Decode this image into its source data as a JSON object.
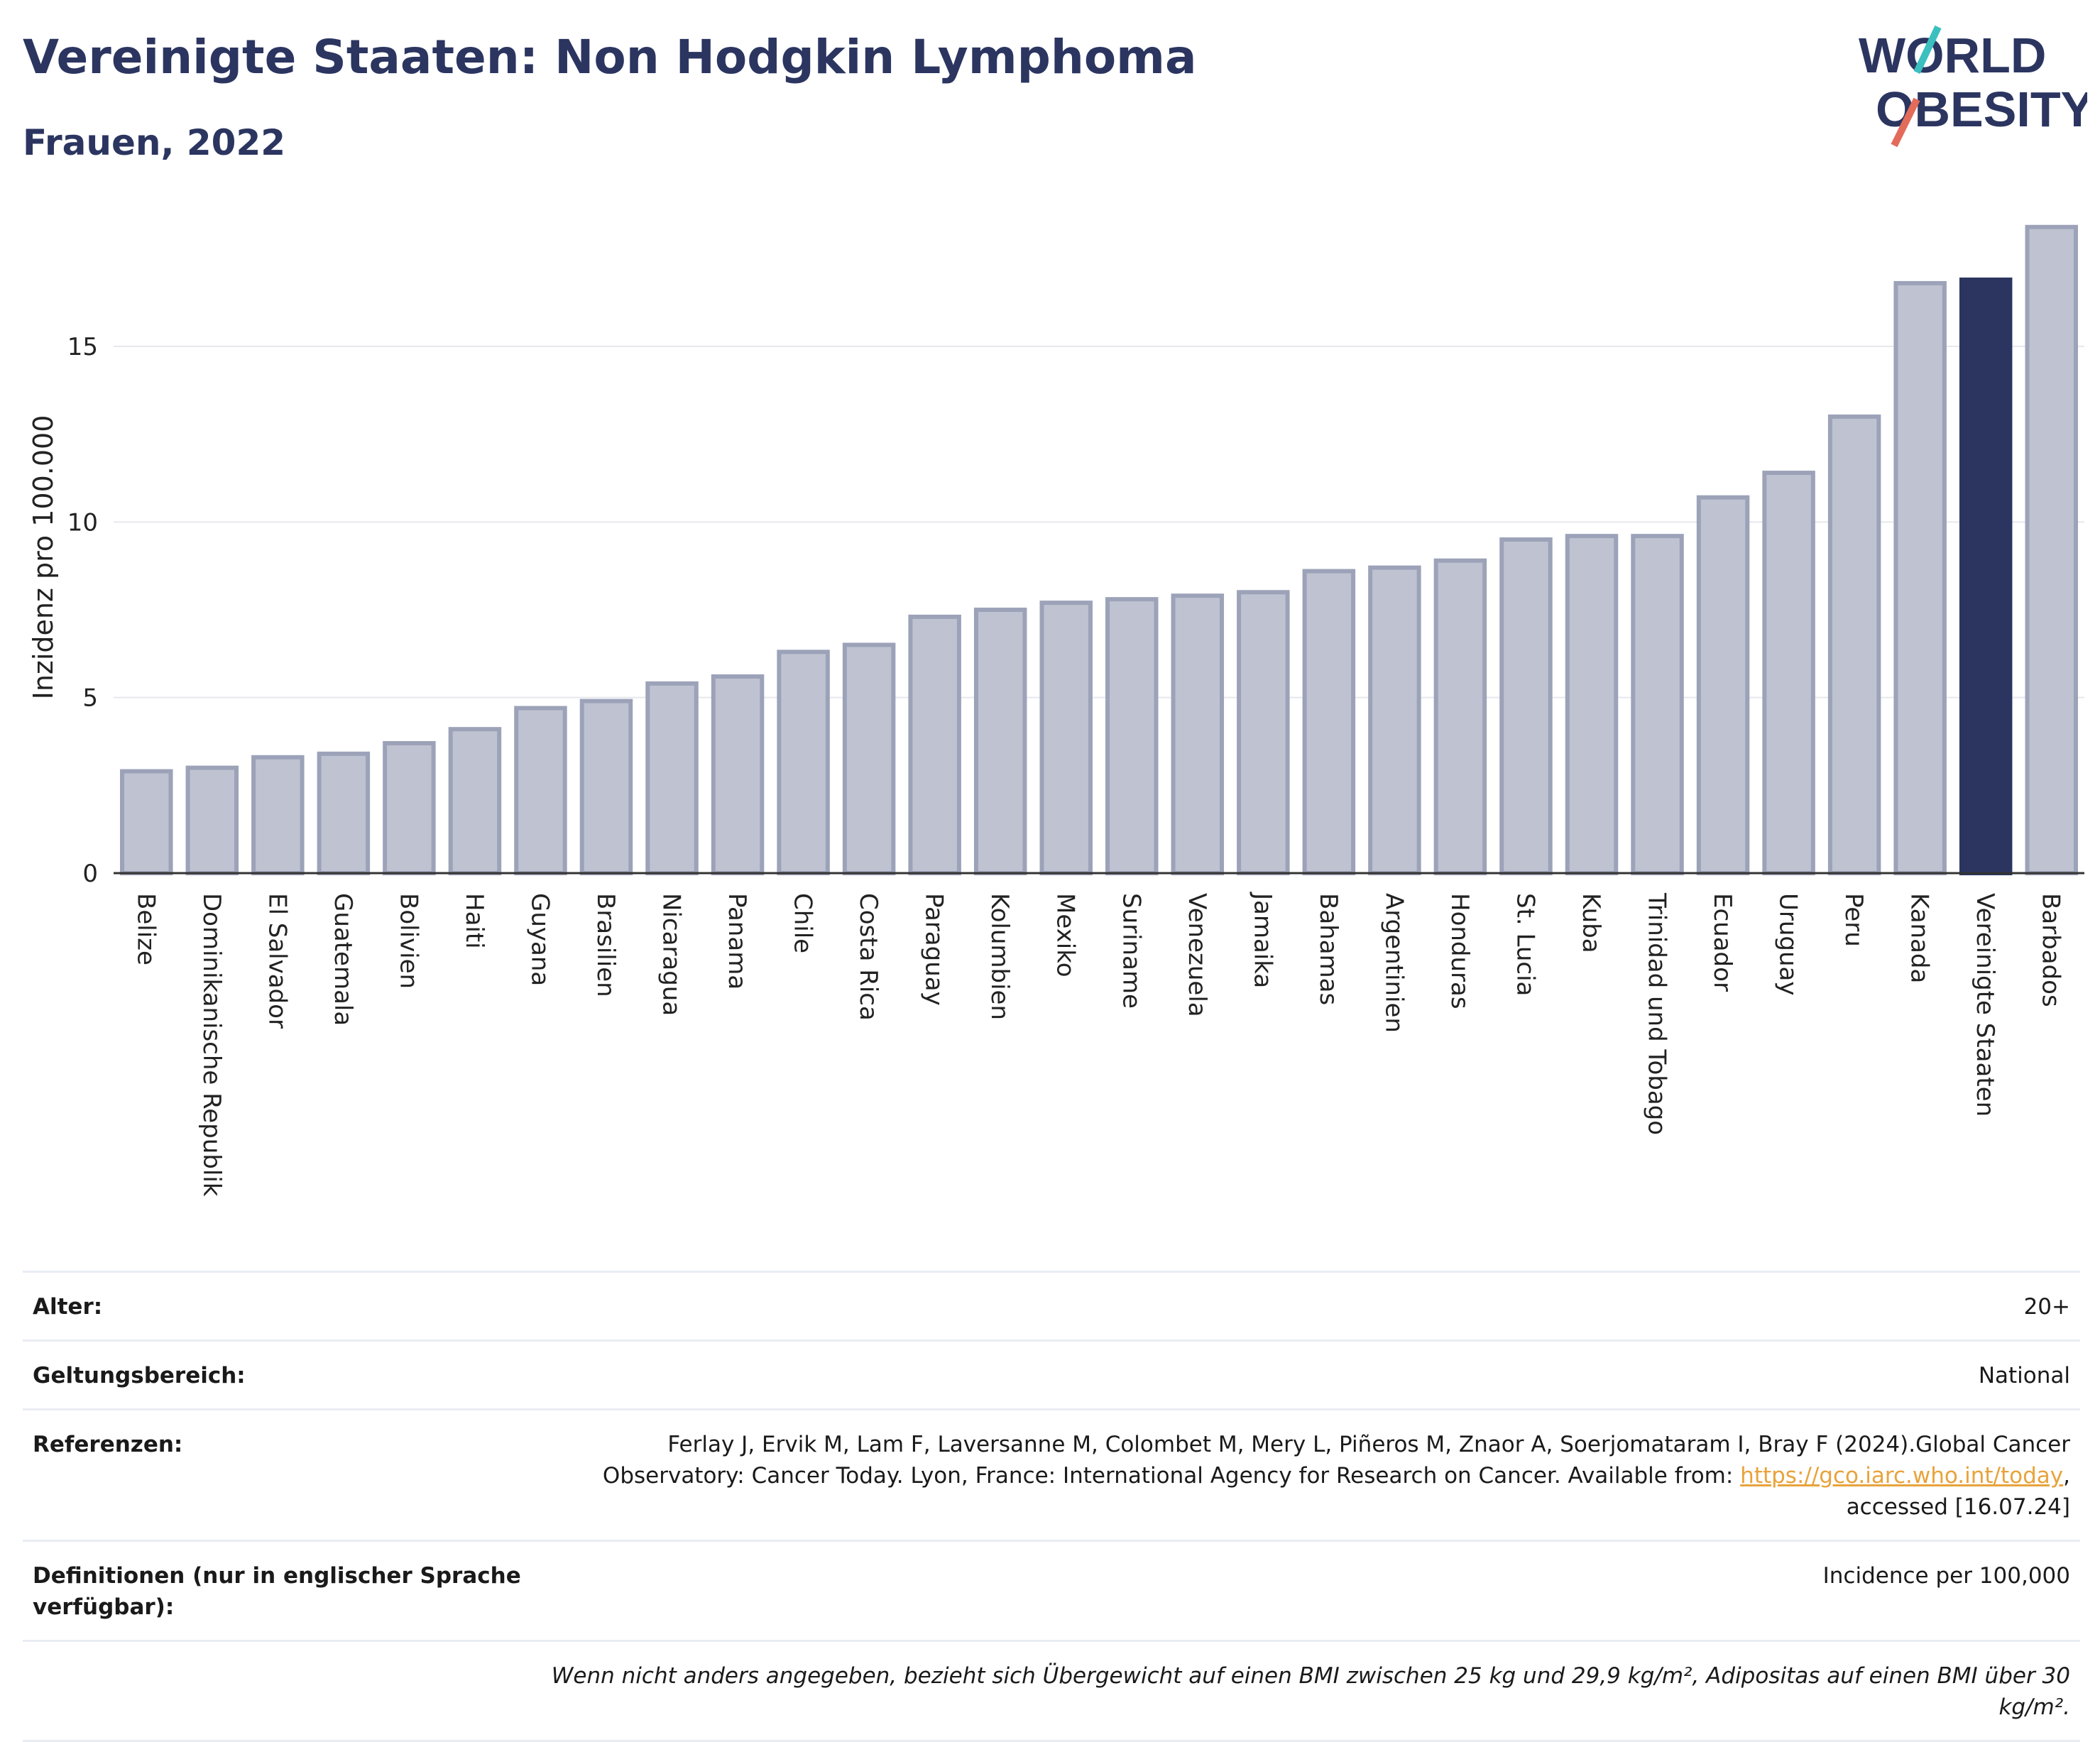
{
  "header": {
    "title": "Vereinigte Staaten: Non Hodgkin Lymphoma",
    "subtitle": "Frauen, 2022"
  },
  "logo": {
    "line1": "WORLD",
    "line2": "OBESITY"
  },
  "colors": {
    "bar": "#bfc3d1",
    "bar_border": "#9ca2b8",
    "highlight": "#2b3560",
    "grid": "#e6e8ee",
    "axis": "#333333"
  },
  "chart_data": {
    "type": "bar",
    "ylabel": "Inzidenz pro 100.000",
    "xlabel": "",
    "ylim": [
      0,
      18.8
    ],
    "yticks": [
      0,
      5,
      10,
      15
    ],
    "grid": true,
    "highlight": "Vereinigte Staaten",
    "categories": [
      "Belize",
      "Dominikanische Republik",
      "El Salvador",
      "Guatemala",
      "Bolivien",
      "Haiti",
      "Guyana",
      "Brasilien",
      "Nicaragua",
      "Panama",
      "Chile",
      "Costa Rica",
      "Paraguay",
      "Kolumbien",
      "Mexiko",
      "Suriname",
      "Venezuela",
      "Jamaika",
      "Bahamas",
      "Argentinien",
      "Honduras",
      "St. Lucia",
      "Kuba",
      "Trinidad und Tobago",
      "Ecuador",
      "Uruguay",
      "Peru",
      "Kanada",
      "Vereinigte Staaten",
      "Barbados"
    ],
    "values": [
      2.9,
      3.0,
      3.3,
      3.4,
      3.7,
      4.1,
      4.7,
      4.9,
      5.4,
      5.6,
      6.3,
      6.5,
      7.3,
      7.5,
      7.7,
      7.8,
      7.9,
      8.0,
      8.6,
      8.7,
      8.9,
      9.5,
      9.6,
      9.6,
      10.7,
      11.4,
      13.0,
      16.8,
      16.9,
      18.4
    ]
  },
  "info": {
    "age_label": "Alter:",
    "age_value": "20+",
    "scope_label": "Geltungsbereich:",
    "scope_value": "National",
    "ref_label": "Referenzen:",
    "ref_text": "Ferlay J, Ervik M, Lam F, Laversanne M, Colombet M, Mery L, Piñeros M, Znaor A, Soerjomataram I, Bray F (2024).Global Cancer Observatory: Cancer Today. Lyon, France: International Agency for Research on Cancer. Available from: ",
    "ref_link": "https://gco.iarc.who.int/today",
    "ref_suffix": ", accessed [16.07.24]",
    "def_label": "Definitionen (nur in englischer Sprache verfügbar):",
    "def_value": "Incidence per 100,000",
    "note": "Wenn nicht anders angegeben, bezieht sich Übergewicht auf einen BMI zwischen 25 kg und 29,9 kg/m², Adipositas auf einen BMI über 30 kg/m²."
  }
}
